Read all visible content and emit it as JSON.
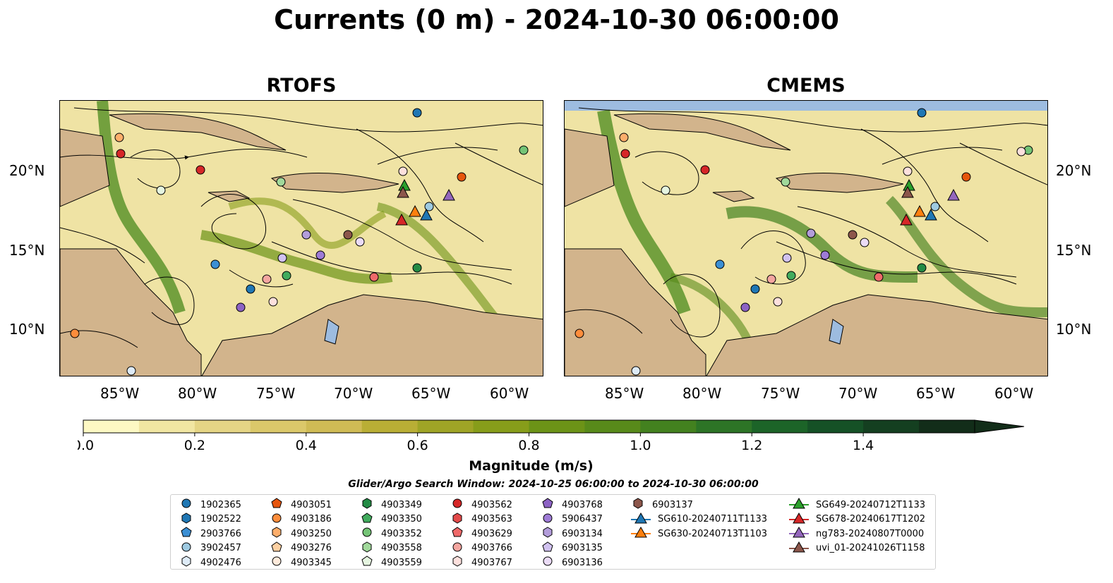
{
  "title": "Currents (0 m) - 2024-10-30 06:00:00",
  "panels": [
    {
      "title": "RTOFS"
    },
    {
      "title": "CMEMS"
    }
  ],
  "axes": {
    "x_ticks": [
      "85°W",
      "80°W",
      "75°W",
      "70°W",
      "65°W",
      "60°W"
    ],
    "y_ticks": [
      "20°N",
      "15°N",
      "10°N"
    ]
  },
  "colorbar": {
    "label": "Magnitude (m/s)",
    "ticks": [
      "0.0",
      "0.2",
      "0.4",
      "0.6",
      "0.8",
      "1.0",
      "1.2",
      "1.4"
    ],
    "min": 0.0,
    "max": 1.5,
    "step": 0.1,
    "extend": "max",
    "colors": [
      "#fdf8c3",
      "#f1e6a2",
      "#e5d585",
      "#dbc86a",
      "#cfbb55",
      "#b9ae35",
      "#9fa426",
      "#879d1a",
      "#6c9317",
      "#588a1a",
      "#43811f",
      "#2d7426",
      "#1c6428",
      "#155126",
      "#143f20",
      "#122d19"
    ]
  },
  "search_window": "Glider/Argo Search Window: 2024-10-25 06:00:00 to 2024-10-30 06:00:00",
  "colors": {
    "land": "#d2b48c",
    "water_bodies": "#9dbce0",
    "north_band": "#9dbce0"
  },
  "legend": [
    {
      "label": "1902365",
      "marker": "circle",
      "color": "#1f77b4"
    },
    {
      "label": "1902522",
      "marker": "hexagon",
      "color": "#1f77b4"
    },
    {
      "label": "2903766",
      "marker": "pentagon",
      "color": "#3b8fd4"
    },
    {
      "label": "3902457",
      "marker": "circle",
      "color": "#9ecae1"
    },
    {
      "label": "4902476",
      "marker": "hexagon",
      "color": "#deebf7"
    },
    {
      "label": "4903051",
      "marker": "pentagon",
      "color": "#e6550d"
    },
    {
      "label": "4903186",
      "marker": "circle",
      "color": "#fd8d3c"
    },
    {
      "label": "4903250",
      "marker": "hexagon",
      "color": "#fdae6b"
    },
    {
      "label": "4903276",
      "marker": "pentagon",
      "color": "#fdd0a2"
    },
    {
      "label": "4903345",
      "marker": "circle",
      "color": "#feeadb"
    },
    {
      "label": "4903349",
      "marker": "hexagon",
      "color": "#238b45"
    },
    {
      "label": "4903350",
      "marker": "pentagon",
      "color": "#41ab5d"
    },
    {
      "label": "4903352",
      "marker": "circle",
      "color": "#74c476"
    },
    {
      "label": "4903558",
      "marker": "hexagon",
      "color": "#a1d99b"
    },
    {
      "label": "4903559",
      "marker": "pentagon",
      "color": "#e5f5e0"
    },
    {
      "label": "4903562",
      "marker": "circle",
      "color": "#d62728"
    },
    {
      "label": "4903563",
      "marker": "hexagon",
      "color": "#e34a4a"
    },
    {
      "label": "4903629",
      "marker": "pentagon",
      "color": "#ef6a6a"
    },
    {
      "label": "4903766",
      "marker": "circle",
      "color": "#f4a6a0"
    },
    {
      "label": "4903767",
      "marker": "hexagon",
      "color": "#fde0dd"
    },
    {
      "label": "4903768",
      "marker": "pentagon",
      "color": "#8c62c4"
    },
    {
      "label": "5906437",
      "marker": "circle",
      "color": "#9e7bd6"
    },
    {
      "label": "6903134",
      "marker": "hexagon",
      "color": "#b39ddb"
    },
    {
      "label": "6903135",
      "marker": "pentagon",
      "color": "#d1c2f0"
    },
    {
      "label": "6903136",
      "marker": "circle",
      "color": "#ebdcf7"
    },
    {
      "label": "6903137",
      "marker": "hexagon",
      "color": "#8c564b"
    },
    {
      "label": "SG610-20240711T1133",
      "marker": "triangle",
      "color": "#1f77b4"
    },
    {
      "label": "SG630-20240713T1103",
      "marker": "triangle",
      "color": "#ff7f0e"
    },
    {
      "label": "SG649-20240712T1133",
      "marker": "triangle",
      "color": "#2ca02c"
    },
    {
      "label": "SG678-20240617T1202",
      "marker": "triangle",
      "color": "#d62728"
    },
    {
      "label": "ng783-20240807T0000",
      "marker": "triangle",
      "color": "#9467bd"
    },
    {
      "label": "uvi_01-20241026T1158",
      "marker": "triangle",
      "color": "#8c564b"
    }
  ]
}
